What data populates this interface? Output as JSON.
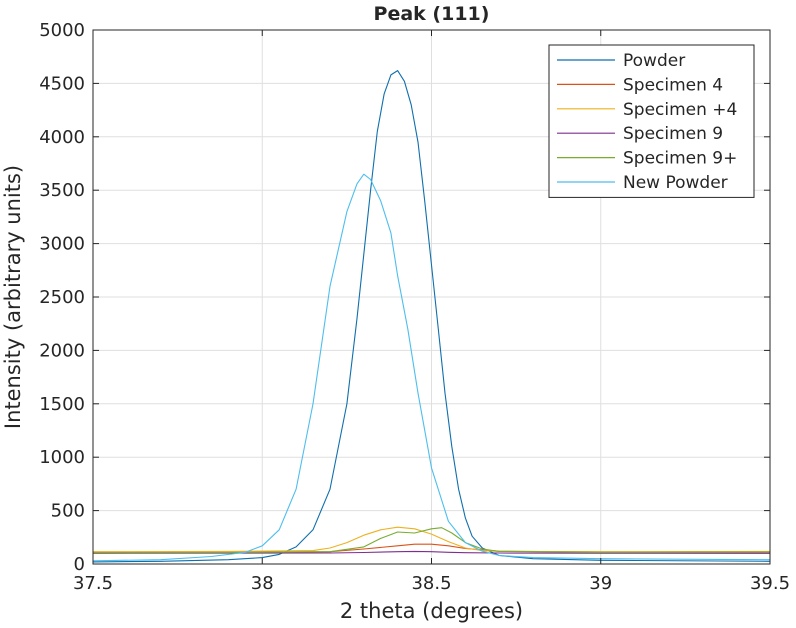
{
  "chart_data": {
    "type": "line",
    "title": "Peak (111)",
    "xlabel": "2 theta (degrees)",
    "ylabel": "Intensity (arbitrary units)",
    "xlim": [
      37.5,
      39.5
    ],
    "ylim": [
      0,
      5000
    ],
    "xticks": [
      "37.5",
      "38",
      "38.5",
      "39",
      "39.5"
    ],
    "yticks": [
      "0",
      "500",
      "1000",
      "1500",
      "2000",
      "2500",
      "3000",
      "3500",
      "4000",
      "4500",
      "5000"
    ],
    "grid": true,
    "legend_position": "top-right",
    "series": [
      {
        "name": "Powder",
        "color": "#0f6fad",
        "x": [
          37.5,
          37.7,
          37.9,
          38.0,
          38.05,
          38.1,
          38.15,
          38.2,
          38.25,
          38.28,
          38.3,
          38.32,
          38.34,
          38.36,
          38.38,
          38.4,
          38.42,
          38.44,
          38.46,
          38.48,
          38.5,
          38.52,
          38.54,
          38.56,
          38.58,
          38.6,
          38.62,
          38.65,
          38.7,
          38.8,
          39.0,
          39.5
        ],
        "y": [
          20,
          25,
          40,
          60,
          90,
          160,
          320,
          700,
          1500,
          2300,
          2900,
          3500,
          4050,
          4400,
          4580,
          4620,
          4520,
          4300,
          3950,
          3400,
          2800,
          2200,
          1600,
          1100,
          700,
          430,
          260,
          150,
          80,
          50,
          35,
          25
        ]
      },
      {
        "name": "Specimen 4",
        "color": "#d95319",
        "x": [
          37.5,
          37.9,
          38.2,
          38.3,
          38.4,
          38.45,
          38.5,
          38.55,
          38.6,
          38.7,
          39.0,
          39.5
        ],
        "y": [
          110,
          110,
          115,
          140,
          170,
          185,
          185,
          170,
          145,
          120,
          112,
          110
        ]
      },
      {
        "name": "Specimen +4",
        "color": "#edb120",
        "x": [
          37.5,
          37.9,
          38.15,
          38.2,
          38.25,
          38.3,
          38.35,
          38.4,
          38.45,
          38.5,
          38.55,
          38.6,
          38.65,
          38.7,
          39.0,
          39.5
        ],
        "y": [
          115,
          118,
          125,
          150,
          200,
          270,
          320,
          345,
          330,
          280,
          210,
          150,
          125,
          118,
          115,
          118
        ]
      },
      {
        "name": "Specimen 9",
        "color": "#7e2f8e",
        "x": [
          37.5,
          37.9,
          38.2,
          38.3,
          38.4,
          38.45,
          38.5,
          38.55,
          38.6,
          38.7,
          39.0,
          39.5
        ],
        "y": [
          100,
          102,
          103,
          108,
          115,
          118,
          115,
          110,
          106,
          103,
          101,
          100
        ]
      },
      {
        "name": "Specimen 9+",
        "color": "#77ac30",
        "x": [
          37.5,
          37.9,
          38.2,
          38.3,
          38.35,
          38.4,
          38.45,
          38.5,
          38.53,
          38.56,
          38.6,
          38.65,
          38.7,
          39.0,
          39.5
        ],
        "y": [
          105,
          108,
          115,
          160,
          240,
          300,
          290,
          330,
          340,
          290,
          200,
          140,
          118,
          110,
          112
        ]
      },
      {
        "name": "New Powder",
        "color": "#4dbeee",
        "x": [
          37.5,
          37.7,
          37.85,
          37.95,
          38.0,
          38.05,
          38.1,
          38.15,
          38.2,
          38.25,
          38.28,
          38.3,
          38.32,
          38.35,
          38.38,
          38.4,
          38.43,
          38.46,
          38.5,
          38.55,
          38.6,
          38.65,
          38.7,
          38.8,
          39.0,
          39.5
        ],
        "y": [
          30,
          40,
          70,
          110,
          170,
          320,
          700,
          1500,
          2600,
          3300,
          3560,
          3650,
          3600,
          3400,
          3100,
          2700,
          2200,
          1600,
          900,
          400,
          200,
          120,
          80,
          60,
          50,
          40
        ]
      }
    ]
  }
}
